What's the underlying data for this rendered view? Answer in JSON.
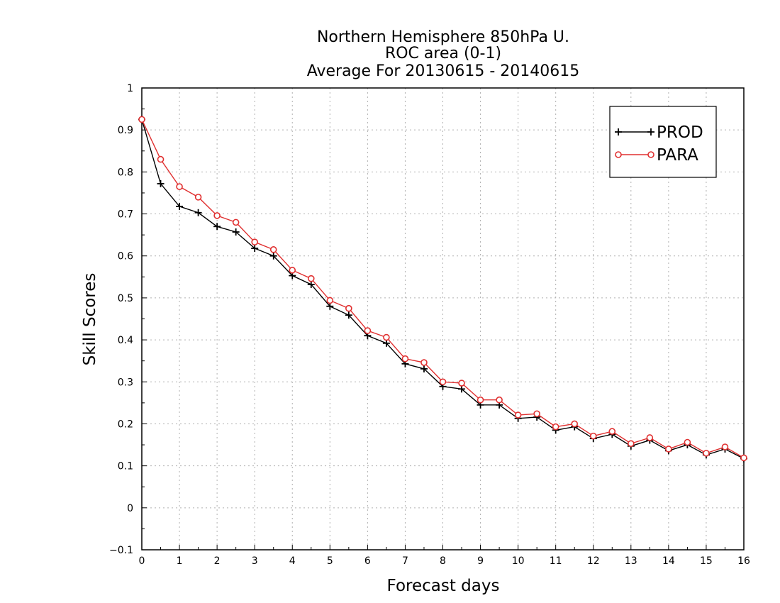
{
  "chart_data": {
    "type": "line",
    "title_lines": [
      "Northern Hemisphere 850hPa U.",
      "ROC area (0-1)",
      "Average For 20130615 - 20140615"
    ],
    "xlabel": "Forecast days",
    "ylabel": "Skill Scores",
    "xlim": [
      0,
      16
    ],
    "ylim": [
      -0.1,
      1
    ],
    "x_ticks": [
      "0",
      "1",
      "2",
      "3",
      "4",
      "5",
      "6",
      "7",
      "8",
      "9",
      "10",
      "11",
      "12",
      "13",
      "14",
      "15",
      "16"
    ],
    "y_ticks": [
      "−0.1",
      "0",
      "0.1",
      "0.2",
      "0.3",
      "0.4",
      "0.5",
      "0.6",
      "0.7",
      "0.8",
      "0.9",
      "1"
    ],
    "grid": true,
    "legend_position": "top-right",
    "x": [
      0,
      0.5,
      1,
      1.5,
      2,
      2.5,
      3,
      3.5,
      4,
      4.5,
      5,
      5.5,
      6,
      6.5,
      7,
      7.5,
      8,
      8.5,
      9,
      9.5,
      10,
      10.5,
      11,
      11.5,
      12,
      12.5,
      13,
      13.5,
      14,
      14.5,
      15,
      15.5,
      16
    ],
    "series": [
      {
        "name": "PROD",
        "color": "#000000",
        "marker": "plus",
        "values": [
          0.925,
          0.772,
          0.718,
          0.703,
          0.67,
          0.657,
          0.618,
          0.6,
          0.553,
          0.532,
          0.48,
          0.459,
          0.41,
          0.392,
          0.343,
          0.331,
          0.289,
          0.283,
          0.245,
          0.245,
          0.213,
          0.216,
          0.185,
          0.193,
          0.165,
          0.175,
          0.147,
          0.161,
          0.136,
          0.15,
          0.126,
          0.14,
          0.117
        ]
      },
      {
        "name": "PARA",
        "color": "#e03030",
        "marker": "circle",
        "values": [
          0.925,
          0.83,
          0.765,
          0.74,
          0.696,
          0.68,
          0.633,
          0.615,
          0.566,
          0.546,
          0.494,
          0.475,
          0.422,
          0.406,
          0.355,
          0.346,
          0.3,
          0.297,
          0.257,
          0.257,
          0.221,
          0.224,
          0.193,
          0.2,
          0.171,
          0.182,
          0.153,
          0.167,
          0.14,
          0.156,
          0.13,
          0.145,
          0.119
        ]
      }
    ]
  }
}
